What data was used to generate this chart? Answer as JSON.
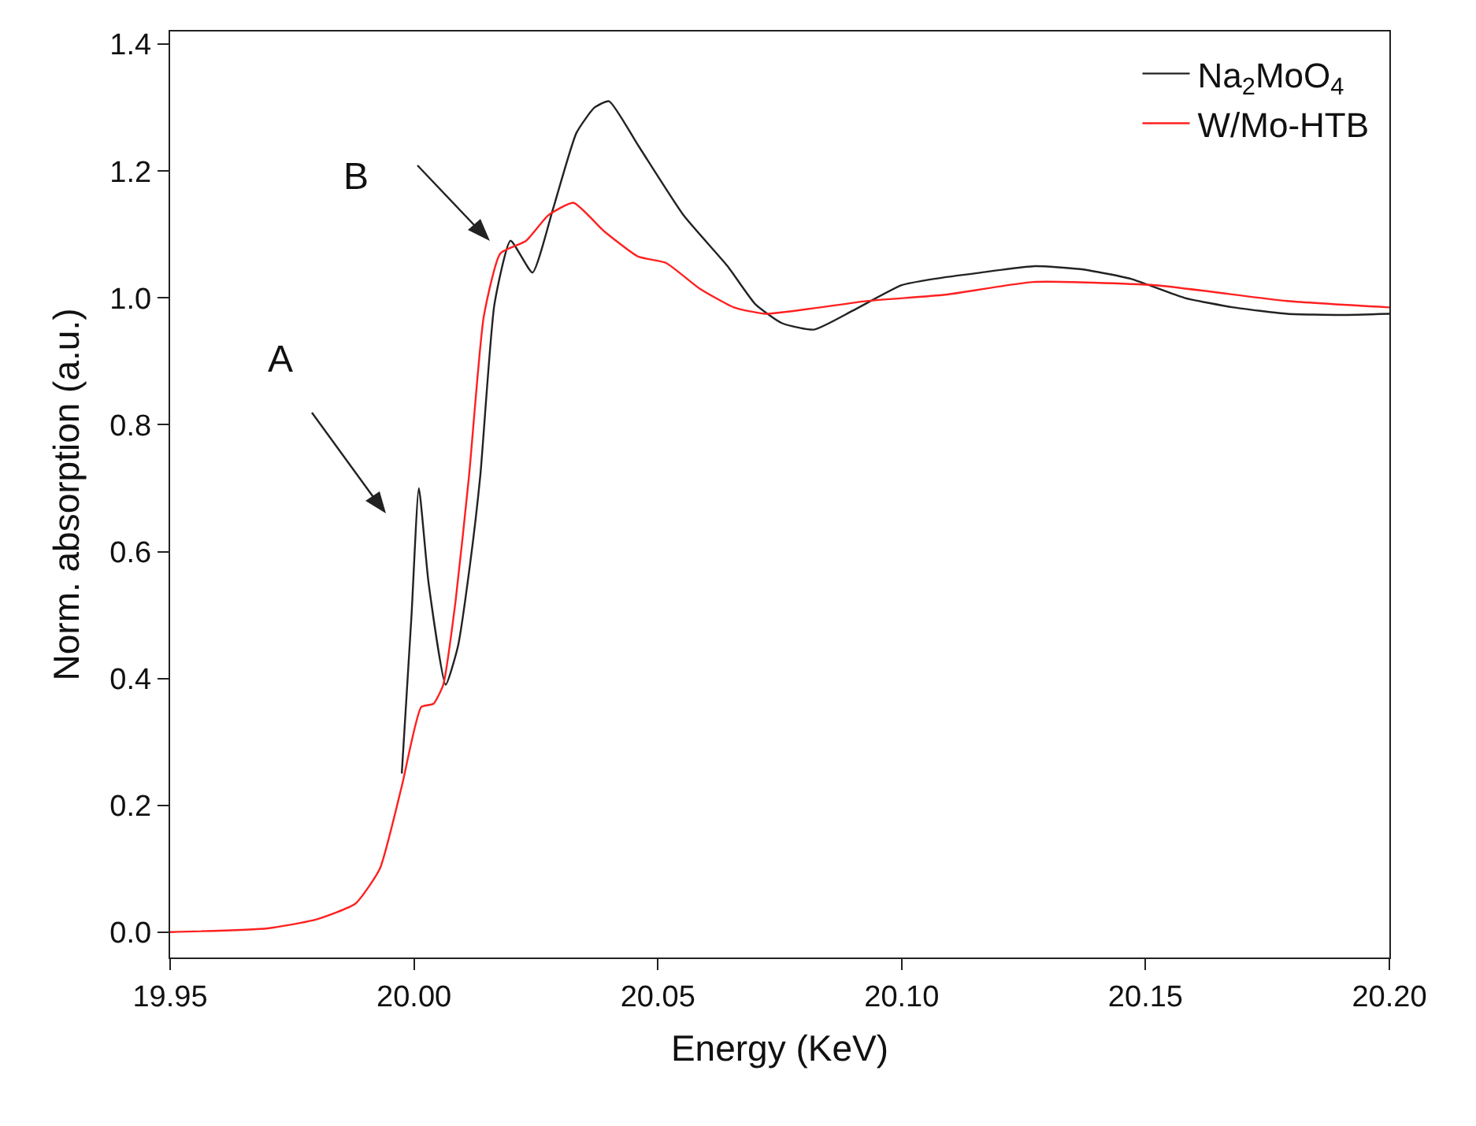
{
  "chart_data": {
    "type": "line",
    "xlabel": "Energy (KeV)",
    "ylabel": "Norm. absorption (a.u.)",
    "xlim": [
      19.95,
      20.2
    ],
    "xticks": [
      {
        "value": 19.95,
        "label": "19.95"
      },
      {
        "value": 20.0,
        "label": "20.00"
      },
      {
        "value": 20.05,
        "label": "20.05"
      },
      {
        "value": 20.1,
        "label": "20.10"
      },
      {
        "value": 20.15,
        "label": "20.15"
      },
      {
        "value": 20.2,
        "label": "20.20"
      }
    ],
    "ylim": [
      -0.04,
      1.42
    ],
    "yticks": [
      {
        "value": 0,
        "label": "0.0"
      },
      {
        "value": 0.2,
        "label": "0.2"
      },
      {
        "value": 0.4,
        "label": "0.4"
      },
      {
        "value": 0.6,
        "label": "0.6"
      },
      {
        "value": 0.8,
        "label": "0.8"
      },
      {
        "value": 1.0,
        "label": "1.0"
      },
      {
        "value": 1.2,
        "label": "1.2"
      },
      {
        "value": 1.4,
        "label": "1.4"
      }
    ],
    "grid": false,
    "legend": "top right",
    "marker": "none",
    "line_style": "solid",
    "annotations": [
      "A",
      "B"
    ],
    "series": [
      {
        "name": "Na$_{2}$MoO$_{4}$",
        "color": "#222222",
        "x": [
          19.9975,
          19.9995,
          20.001,
          20.003,
          20.0065,
          20.009,
          20.0115,
          20.0136,
          20.0165,
          20.0198,
          20.0243,
          20.0285,
          20.0333,
          20.037,
          20.04,
          20.046,
          20.0553,
          20.0643,
          20.07,
          20.0755,
          20.082,
          20.09,
          20.1,
          20.1067,
          20.1163,
          20.1273,
          20.137,
          20.147,
          20.158,
          20.168,
          20.179,
          20.19,
          20.2
        ],
        "values": [
          0.25,
          0.5,
          0.7,
          0.55,
          0.39,
          0.45,
          0.58,
          0.72,
          0.99,
          1.09,
          1.04,
          1.14,
          1.26,
          1.3,
          1.31,
          1.24,
          1.13,
          1.05,
          0.99,
          0.96,
          0.95,
          0.98,
          1.02,
          1.03,
          1.04,
          1.05,
          1.045,
          1.03,
          1.0,
          0.985,
          0.975,
          0.973,
          0.975
        ]
      },
      {
        "name": "W/Mo-HTB",
        "color": "#ff2020",
        "x": [
          19.95,
          19.97,
          19.98,
          19.988,
          19.993,
          19.9975,
          20.0015,
          20.004,
          20.006,
          20.0085,
          20.0113,
          20.0143,
          20.0177,
          20.023,
          20.0275,
          20.0327,
          20.039,
          20.046,
          20.0517,
          20.0585,
          20.0656,
          20.072,
          20.0928,
          20.109,
          20.127,
          20.152,
          20.179,
          20.2
        ],
        "values": [
          0.0,
          0.006,
          0.02,
          0.045,
          0.1,
          0.23,
          0.355,
          0.36,
          0.39,
          0.52,
          0.72,
          0.97,
          1.07,
          1.09,
          1.13,
          1.15,
          1.105,
          1.065,
          1.055,
          1.015,
          0.985,
          0.975,
          0.995,
          1.005,
          1.025,
          1.02,
          0.995,
          0.985
        ]
      }
    ]
  }
}
